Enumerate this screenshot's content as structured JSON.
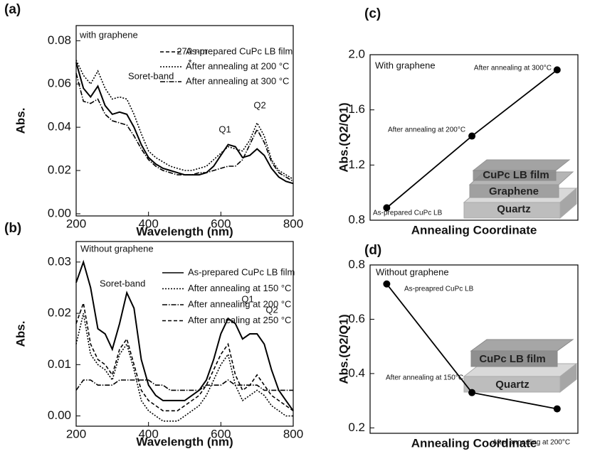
{
  "chart_data": [
    {
      "type": "line",
      "panel": "(a)",
      "xlabel": "Wavelength (nm)",
      "ylabel": "Abs.",
      "xlim": [
        200,
        800
      ],
      "xticks": [
        200,
        400,
        600,
        800
      ],
      "ylim": [
        -0.001,
        0.087
      ],
      "yticks": [
        {
          "value": 0,
          "label": "0.00"
        },
        0.02,
        0.04,
        0.06,
        0.08
      ],
      "annotations": [
        "with graphene",
        "270 nm",
        "*",
        "Soret-band",
        "Q1",
        "Q2"
      ],
      "x": [
        200,
        220,
        240,
        260,
        280,
        300,
        320,
        340,
        360,
        380,
        400,
        420,
        440,
        460,
        480,
        500,
        520,
        540,
        560,
        580,
        600,
        620,
        640,
        660,
        680,
        700,
        720,
        740,
        760,
        780,
        800
      ],
      "series": [
        {
          "name": "As-prepared CuPc LB film",
          "style": "dashed",
          "line_style": "solid",
          "color": "#000000",
          "values": [
            0.07,
            0.058,
            0.054,
            0.059,
            0.05,
            0.046,
            0.047,
            0.046,
            0.04,
            0.032,
            0.026,
            0.023,
            0.021,
            0.02,
            0.019,
            0.018,
            0.018,
            0.018,
            0.019,
            0.022,
            0.027,
            0.032,
            0.031,
            0.026,
            0.027,
            0.03,
            0.027,
            0.021,
            0.017,
            0.015,
            0.014
          ]
        },
        {
          "name": "After annealing at 200 °C",
          "style": "dotted",
          "line_style": "dotted",
          "color": "#000000",
          "values": [
            0.071,
            0.064,
            0.06,
            0.066,
            0.058,
            0.053,
            0.054,
            0.053,
            0.046,
            0.037,
            0.029,
            0.026,
            0.024,
            0.022,
            0.021,
            0.02,
            0.02,
            0.021,
            0.022,
            0.025,
            0.028,
            0.031,
            0.03,
            0.029,
            0.034,
            0.042,
            0.036,
            0.025,
            0.02,
            0.018,
            0.016
          ]
        },
        {
          "name": "After annealing at 300 °C",
          "style": "dashdot",
          "line_style": "dashdot",
          "color": "#000000",
          "values": [
            0.065,
            0.052,
            0.051,
            0.053,
            0.046,
            0.043,
            0.042,
            0.041,
            0.036,
            0.03,
            0.025,
            0.022,
            0.02,
            0.019,
            0.018,
            0.018,
            0.018,
            0.019,
            0.019,
            0.02,
            0.021,
            0.022,
            0.022,
            0.025,
            0.032,
            0.039,
            0.033,
            0.024,
            0.019,
            0.017,
            0.015
          ]
        }
      ]
    },
    {
      "type": "line",
      "panel": "(b)",
      "xlabel": "Wavelength (nm)",
      "ylabel": "Abs.",
      "xlim": [
        200,
        800
      ],
      "xticks": [
        200,
        400,
        600,
        800
      ],
      "ylim": [
        -0.002,
        0.034
      ],
      "yticks": [
        {
          "value": 0,
          "label": "0.00"
        },
        0.01,
        0.02,
        0.03
      ],
      "annotations": [
        "Without graphene",
        "Soret-band",
        "Q1",
        "Q2"
      ],
      "x": [
        200,
        220,
        240,
        260,
        280,
        300,
        320,
        340,
        360,
        380,
        400,
        420,
        440,
        460,
        480,
        500,
        520,
        540,
        560,
        580,
        600,
        620,
        640,
        660,
        680,
        700,
        720,
        740,
        760,
        780,
        800
      ],
      "series": [
        {
          "name": "As-prepared CuPc LB film",
          "style": "solid",
          "line_style": "solid",
          "color": "#000000",
          "values": [
            0.026,
            0.03,
            0.025,
            0.017,
            0.016,
            0.013,
            0.018,
            0.024,
            0.021,
            0.011,
            0.006,
            0.004,
            0.003,
            0.003,
            0.003,
            0.003,
            0.004,
            0.005,
            0.007,
            0.011,
            0.016,
            0.019,
            0.018,
            0.015,
            0.016,
            0.016,
            0.014,
            0.009,
            0.005,
            0.003,
            0.001
          ]
        },
        {
          "name": "After annealing at 150 °C",
          "style": "dotted",
          "line_style": "dotted",
          "color": "#000000",
          "values": [
            0.014,
            0.02,
            0.012,
            0.01,
            0.009,
            0.007,
            0.012,
            0.014,
            0.009,
            0.003,
            0.001,
            0.0,
            -0.001,
            -0.001,
            -0.001,
            0.0,
            0.001,
            0.002,
            0.004,
            0.007,
            0.01,
            0.012,
            0.006,
            0.003,
            0.004,
            0.005,
            0.004,
            0.002,
            0.001,
            0.0,
            0.0
          ]
        },
        {
          "name": "After annealing at 200 °C",
          "style": "dashdot",
          "line_style": "dashdot",
          "color": "#000000",
          "values": [
            0.005,
            0.007,
            0.007,
            0.006,
            0.006,
            0.006,
            0.007,
            0.007,
            0.007,
            0.007,
            0.007,
            0.006,
            0.006,
            0.005,
            0.005,
            0.005,
            0.005,
            0.005,
            0.006,
            0.006,
            0.006,
            0.007,
            0.006,
            0.006,
            0.006,
            0.006,
            0.005,
            0.005,
            0.005,
            0.005,
            0.005
          ]
        },
        {
          "name": "After annealing at 250 °C",
          "style": "dashed",
          "line_style": "dashed",
          "color": "#000000",
          "values": [
            0.018,
            0.022,
            0.014,
            0.011,
            0.01,
            0.008,
            0.013,
            0.015,
            0.01,
            0.005,
            0.003,
            0.002,
            0.001,
            0.001,
            0.001,
            0.002,
            0.003,
            0.004,
            0.006,
            0.009,
            0.012,
            0.014,
            0.008,
            0.005,
            0.006,
            0.008,
            0.006,
            0.004,
            0.003,
            0.002,
            0.001
          ]
        }
      ]
    },
    {
      "type": "line",
      "panel": "(c)",
      "xlabel": "Annealing Coordinate",
      "ylabel": "Abs.(Q2/Q1)",
      "ylim": [
        0.8,
        2.0
      ],
      "yticks": [
        0.8,
        1.2,
        1.6,
        {
          "value": 2,
          "label": "2.0"
        }
      ],
      "annotations": [
        "With graphene"
      ],
      "markers": true,
      "categories": [
        null,
        null,
        null
      ],
      "point_labels": [
        "As-prepared CuPc LB",
        "After  annealing at 200°C",
        "After annealing at 300°C"
      ],
      "inset_labels": [
        "CuPc LB film",
        "Graphene",
        "Quartz"
      ],
      "color": "#000000",
      "values": [
        0.89,
        1.41,
        1.89
      ]
    },
    {
      "type": "line",
      "panel": "(d)",
      "xlabel": "Annealing Coordinate",
      "ylabel": "Abs.(Q2/Q1)",
      "ylim": [
        0.18,
        0.8
      ],
      "yticks": [
        0.2,
        0.4,
        0.6,
        0.8
      ],
      "annotations": [
        "Without graphene"
      ],
      "markers": true,
      "categories": [
        null,
        null,
        null
      ],
      "point_labels": [
        "As-preapred CuPc LB",
        "After annealing at 150°C",
        "After annealing at 200°C"
      ],
      "inset_labels": [
        "CuPc LB film",
        "Quartz"
      ],
      "color": "#000000",
      "values": [
        0.73,
        0.33,
        0.27
      ]
    }
  ]
}
